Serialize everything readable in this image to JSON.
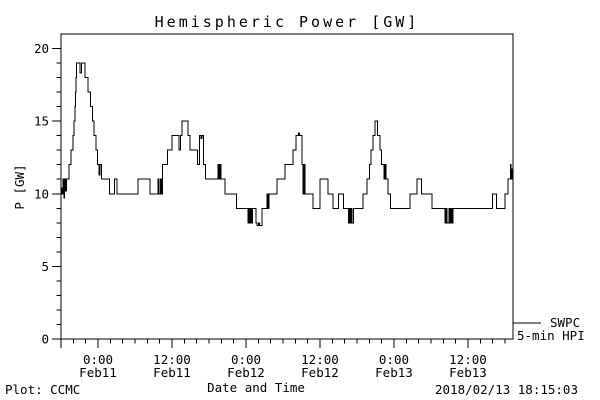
{
  "title": "Hemispheric Power [GW]",
  "footer": {
    "source": "Plot: CCMC",
    "timestamp": "2018/02/13 18:15:03"
  },
  "legend": {
    "line1": "SWPC",
    "line2": "5-min HPI"
  },
  "chart_data": {
    "type": "line",
    "title": "Hemispheric Power [GW]",
    "xlabel": "Date and Time",
    "ylabel": "P [GW]",
    "ylim": [
      0,
      21
    ],
    "y_ticks_major": [
      0,
      5,
      10,
      15,
      20
    ],
    "y_tick_minor_step": 1,
    "y_minor_max": 20,
    "x_span_hours": 73.3,
    "x_start": "Feb10 18:00",
    "x_ticks_major_hours": [
      0,
      6,
      18,
      30,
      42,
      54,
      66
    ],
    "x_tick_minor_step_hours": 2,
    "x_tick_labels": [
      {
        "hours": 6,
        "time": "0:00",
        "date": "Feb11"
      },
      {
        "hours": 18,
        "time": "12:00",
        "date": "Feb11"
      },
      {
        "hours": 30,
        "time": "0:00",
        "date": "Feb12"
      },
      {
        "hours": 42,
        "time": "12:00",
        "date": "Feb12"
      },
      {
        "hours": 54,
        "time": "0:00",
        "date": "Feb13"
      },
      {
        "hours": 66,
        "time": "12:00",
        "date": "Feb13"
      }
    ],
    "line_color": "#000000",
    "background_color": "#ffffff",
    "legend_position": "right-bottom",
    "grid": false,
    "series": [
      {
        "name": "SWPC 5-min HPI",
        "units": "GW",
        "points_hours_vs_gw": [
          [
            0,
            10.4
          ],
          [
            0.15,
            10
          ],
          [
            0.3,
            11
          ],
          [
            0.45,
            9.7
          ],
          [
            0.6,
            11
          ],
          [
            0.75,
            10.2
          ],
          [
            0.9,
            11
          ],
          [
            1.3,
            12
          ],
          [
            1.65,
            13
          ],
          [
            1.95,
            14
          ],
          [
            2.1,
            15
          ],
          [
            2.25,
            16
          ],
          [
            2.33,
            17
          ],
          [
            2.4,
            18
          ],
          [
            2.5,
            19
          ],
          [
            3.1,
            18.3
          ],
          [
            3.35,
            19
          ],
          [
            3.9,
            18
          ],
          [
            4.4,
            17
          ],
          [
            4.75,
            16
          ],
          [
            5.1,
            15
          ],
          [
            5.35,
            14
          ],
          [
            5.65,
            13
          ],
          [
            5.95,
            12
          ],
          [
            6.15,
            11.3
          ],
          [
            6.3,
            12
          ],
          [
            6.6,
            11
          ],
          [
            7.9,
            10
          ],
          [
            8.7,
            11
          ],
          [
            9.1,
            10
          ],
          [
            12.5,
            11
          ],
          [
            14.4,
            10
          ],
          [
            15.7,
            11
          ],
          [
            15.9,
            10
          ],
          [
            16.1,
            11
          ],
          [
            16.3,
            10
          ],
          [
            16.5,
            12
          ],
          [
            17.3,
            13
          ],
          [
            18.0,
            14
          ],
          [
            19.1,
            13
          ],
          [
            19.35,
            14
          ],
          [
            19.6,
            15
          ],
          [
            20.6,
            14
          ],
          [
            20.9,
            13
          ],
          [
            22.1,
            12
          ],
          [
            22.5,
            14
          ],
          [
            22.7,
            13.8
          ],
          [
            22.85,
            14
          ],
          [
            23.1,
            12
          ],
          [
            23.4,
            11
          ],
          [
            25.5,
            12
          ],
          [
            25.65,
            11
          ],
          [
            25.8,
            12
          ],
          [
            25.95,
            11
          ],
          [
            26.6,
            10
          ],
          [
            28.5,
            9
          ],
          [
            30.3,
            8
          ],
          [
            30.45,
            9
          ],
          [
            30.6,
            8
          ],
          [
            30.75,
            9
          ],
          [
            30.9,
            8
          ],
          [
            31.05,
            9
          ],
          [
            31.6,
            8
          ],
          [
            31.8,
            7.8
          ],
          [
            32.0,
            8
          ],
          [
            32.2,
            7.8
          ],
          [
            32.6,
            9
          ],
          [
            33.4,
            10
          ],
          [
            33.55,
            9
          ],
          [
            33.7,
            10
          ],
          [
            35.0,
            11
          ],
          [
            36.3,
            12
          ],
          [
            37.6,
            13
          ],
          [
            38.1,
            14
          ],
          [
            38.5,
            14.2
          ],
          [
            38.65,
            14
          ],
          [
            39.1,
            12
          ],
          [
            39.25,
            10
          ],
          [
            39.4,
            12
          ],
          [
            39.55,
            10
          ],
          [
            40.9,
            9
          ],
          [
            42.0,
            11
          ],
          [
            43.3,
            10
          ],
          [
            44.1,
            9
          ],
          [
            45.0,
            10
          ],
          [
            45.8,
            9
          ],
          [
            46.6,
            8
          ],
          [
            46.75,
            9
          ],
          [
            46.9,
            8
          ],
          [
            47.05,
            9
          ],
          [
            47.2,
            8
          ],
          [
            47.4,
            9
          ],
          [
            49.0,
            10
          ],
          [
            49.6,
            11
          ],
          [
            50.0,
            12
          ],
          [
            50.3,
            13
          ],
          [
            50.6,
            14
          ],
          [
            50.9,
            15
          ],
          [
            51.3,
            14
          ],
          [
            51.7,
            13
          ],
          [
            52.0,
            12
          ],
          [
            52.4,
            11
          ],
          [
            52.55,
            12
          ],
          [
            52.7,
            11
          ],
          [
            53.0,
            10
          ],
          [
            53.4,
            9
          ],
          [
            56.6,
            10
          ],
          [
            57.7,
            11
          ],
          [
            58.5,
            10
          ],
          [
            60.2,
            9
          ],
          [
            62.3,
            8
          ],
          [
            62.45,
            9
          ],
          [
            62.6,
            8
          ],
          [
            62.9,
            9
          ],
          [
            63.1,
            8
          ],
          [
            63.25,
            9
          ],
          [
            63.4,
            8
          ],
          [
            63.6,
            9
          ],
          [
            70.0,
            10
          ],
          [
            70.6,
            9
          ],
          [
            72.0,
            10
          ],
          [
            72.5,
            11
          ],
          [
            72.9,
            12
          ],
          [
            73.0,
            11
          ],
          [
            73.1,
            11.7
          ],
          [
            73.3,
            11.7
          ]
        ]
      }
    ]
  }
}
